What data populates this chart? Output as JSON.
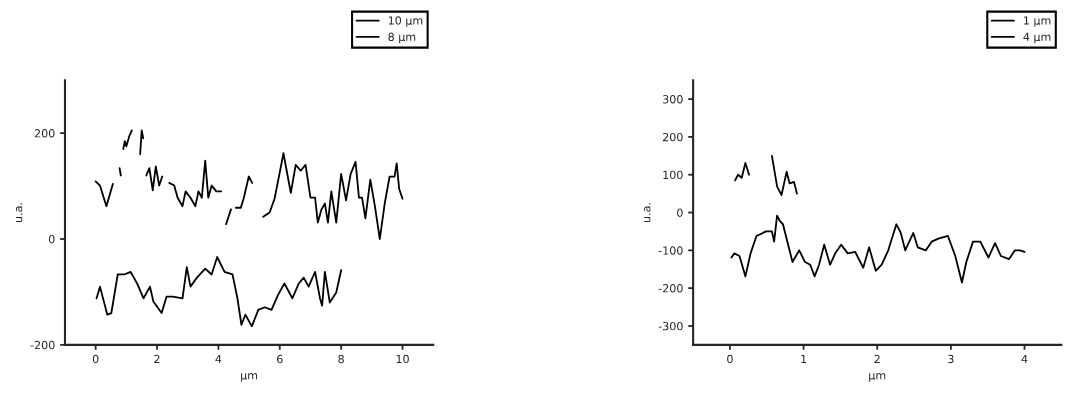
{
  "chart_data": [
    {
      "type": "line",
      "xlabel": "µm",
      "ylabel": "u.a.",
      "xlim": [
        -1,
        11
      ],
      "ylim": [
        -200,
        300
      ],
      "xticks": [
        0,
        2,
        4,
        6,
        8,
        10
      ],
      "yticks": [
        -200,
        0,
        200
      ],
      "grid": false,
      "legend": "top right",
      "marker": "none",
      "line_style": "solid",
      "series": [
        {
          "name": "10 µm",
          "color": "#000000",
          "x": [
            0,
            0.14,
            0.35,
            0.56,
            null,
            0.78,
            0.82,
            null,
            0.9,
            0.95,
            1.0,
            1.1,
            1.18,
            null,
            1.45,
            1.5,
            1.55,
            null,
            1.65,
            1.75,
            1.86,
            1.96,
            2.07,
            2.17,
            null,
            2.4,
            2.56,
            2.67,
            2.83,
            2.93,
            3.09,
            3.25,
            3.35,
            3.46,
            3.57,
            3.67,
            3.78,
            3.93,
            4.09,
            null,
            4.25,
            4.41,
            null,
            4.57,
            4.73,
            4.83,
            4.99,
            5.1,
            null,
            5.46,
            5.67,
            5.83,
            5.99,
            6.12,
            6.26,
            6.36,
            6.52,
            6.68,
            6.84,
            7.0,
            7.15,
            7.24,
            7.36,
            7.47,
            7.57,
            7.68,
            7.84,
            8.0,
            8.16,
            8.31,
            8.47,
            8.58,
            8.68,
            8.79,
            8.95,
            9.1,
            9.26,
            9.42,
            9.58,
            9.74,
            9.81,
            9.89,
            10.0
          ],
          "values": [
            109,
            101,
            62,
            104,
            null,
            134,
            120,
            null,
            170,
            185,
            175,
            195,
            205,
            null,
            160,
            205,
            190,
            null,
            120,
            134,
            92,
            137,
            101,
            118,
            null,
            106,
            101,
            78,
            62,
            90,
            78,
            62,
            90,
            78,
            148,
            78,
            101,
            90,
            90,
            null,
            28,
            56,
            null,
            59,
            59,
            78,
            118,
            106,
            null,
            42,
            50,
            76,
            123,
            162,
            118,
            87,
            140,
            129,
            140,
            78,
            78,
            31,
            56,
            67,
            31,
            90,
            31,
            123,
            73,
            123,
            146,
            78,
            78,
            39,
            112,
            62,
            0,
            67,
            118,
            118,
            143,
            95,
            76
          ]
        },
        {
          "name": "8 µm",
          "color": "#000000",
          "x": [
            0.03,
            0.14,
            0.38,
            0.51,
            0.72,
            0.93,
            1.14,
            1.35,
            1.56,
            1.77,
            1.88,
            2.15,
            2.31,
            2.51,
            2.83,
            2.97,
            3.09,
            3.3,
            3.57,
            3.78,
            3.96,
            4.2,
            4.46,
            4.62,
            4.75,
            4.88,
            5.09,
            5.3,
            5.51,
            5.73,
            5.94,
            6.15,
            6.41,
            6.62,
            6.78,
            6.94,
            7.15,
            7.31,
            7.38,
            7.47,
            7.63,
            7.84,
            8.0
          ],
          "values": [
            -112,
            -90,
            -143,
            -140,
            -67,
            -67,
            -62,
            -84,
            -112,
            -90,
            -118,
            -140,
            -109,
            -109,
            -112,
            -53,
            -90,
            -73,
            -56,
            -67,
            -34,
            -62,
            -67,
            -112,
            -162,
            -143,
            -165,
            -134,
            -129,
            -134,
            -106,
            -84,
            -112,
            -84,
            -73,
            -90,
            -62,
            -112,
            -126,
            -62,
            -120,
            -101,
            -59
          ]
        }
      ]
    },
    {
      "type": "line",
      "xlabel": "µm",
      "ylabel": "u.a.",
      "xlim": [
        -0.5,
        4.5
      ],
      "ylim": [
        -350,
        350
      ],
      "xticks": [
        0,
        1,
        2,
        3,
        4
      ],
      "yticks": [
        -300,
        -200,
        -100,
        0,
        100,
        200,
        300
      ],
      "grid": false,
      "legend": "top right",
      "marker": "none",
      "line_style": "solid",
      "series": [
        {
          "name": "1 µm",
          "color": "#000000",
          "x": [
            0.07,
            0.11,
            0.16,
            0.21,
            0.26,
            null,
            0.57,
            0.64,
            0.7,
            0.77,
            0.81,
            0.87,
            0.91
          ],
          "values": [
            85,
            100,
            92,
            131,
            100,
            null,
            150,
            69,
            46,
            108,
            77,
            81,
            50
          ]
        },
        {
          "name": "4 µm",
          "color": "#000000",
          "x": [
            0.02,
            0.06,
            0.13,
            0.21,
            0.28,
            0.36,
            0.49,
            0.57,
            0.6,
            0.64,
            0.68,
            0.72,
            0.79,
            0.85,
            0.94,
            1.02,
            1.09,
            1.15,
            1.21,
            1.28,
            1.36,
            1.43,
            1.51,
            1.6,
            1.7,
            1.81,
            1.89,
            1.98,
            2.06,
            2.15,
            2.26,
            2.32,
            2.38,
            2.49,
            2.55,
            2.66,
            2.74,
            2.83,
            2.96,
            3.06,
            3.15,
            3.21,
            3.3,
            3.4,
            3.51,
            3.6,
            3.68,
            3.79,
            3.87,
            3.94,
            4.0
          ],
          "values": [
            -119,
            -108,
            -115,
            -169,
            -108,
            -62,
            -50,
            -50,
            -77,
            -8,
            -23,
            -31,
            -85,
            -131,
            -100,
            -131,
            -138,
            -169,
            -138,
            -85,
            -138,
            -108,
            -85,
            -108,
            -104,
            -146,
            -92,
            -154,
            -138,
            -100,
            -31,
            -54,
            -100,
            -54,
            -92,
            -100,
            -77,
            -69,
            -62,
            -115,
            -185,
            -131,
            -77,
            -77,
            -119,
            -81,
            -115,
            -123,
            -100,
            -100,
            -104
          ]
        }
      ]
    }
  ]
}
